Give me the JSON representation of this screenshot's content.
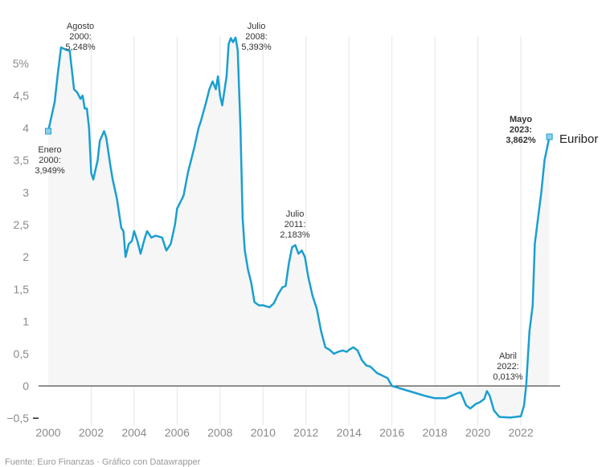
{
  "chart_data": {
    "type": "line",
    "title": "",
    "xlabel": "",
    "ylabel": "",
    "xlim": [
      2000,
      2023.4
    ],
    "ylim": [
      -0.5,
      5.5
    ],
    "grid": "vertical",
    "x_ticks": [
      "2000",
      "2002",
      "2004",
      "2006",
      "2008",
      "2010",
      "2012",
      "2014",
      "2016",
      "2018",
      "2020",
      "2022"
    ],
    "y_ticks": [
      {
        "v": 5,
        "label": "5%"
      },
      {
        "v": 4.5,
        "label": "4,5"
      },
      {
        "v": 4,
        "label": "4"
      },
      {
        "v": 3.5,
        "label": "3,5"
      },
      {
        "v": 3,
        "label": "3"
      },
      {
        "v": 2.5,
        "label": "2,5"
      },
      {
        "v": 2,
        "label": "2"
      },
      {
        "v": 1.5,
        "label": "1,5"
      },
      {
        "v": 1,
        "label": "1"
      },
      {
        "v": 0.5,
        "label": "0,5"
      },
      {
        "v": 0,
        "label": "0"
      },
      {
        "v": -0.5,
        "label": "−0,5"
      }
    ],
    "colors": {
      "line": "#1a9fd0",
      "highlight": "#29a8d8",
      "fill": "#f6f6f6",
      "grid": "#e6e6e6",
      "zero": "#222222"
    },
    "series": [
      {
        "name": "Euribor",
        "points": [
          [
            2000.0,
            3.949
          ],
          [
            2000.3,
            4.4
          ],
          [
            2000.45,
            4.85
          ],
          [
            2000.6,
            5.248
          ],
          [
            2000.9,
            5.2
          ],
          [
            2001.0,
            5.2
          ],
          [
            2001.2,
            4.6
          ],
          [
            2001.35,
            4.55
          ],
          [
            2001.5,
            4.45
          ],
          [
            2001.6,
            4.5
          ],
          [
            2001.7,
            4.3
          ],
          [
            2001.8,
            4.3
          ],
          [
            2001.9,
            4.0
          ],
          [
            2002.0,
            3.3
          ],
          [
            2002.1,
            3.2
          ],
          [
            2002.3,
            3.5
          ],
          [
            2002.4,
            3.8
          ],
          [
            2002.6,
            3.95
          ],
          [
            2002.7,
            3.85
          ],
          [
            2002.9,
            3.4
          ],
          [
            2003.0,
            3.2
          ],
          [
            2003.2,
            2.9
          ],
          [
            2003.4,
            2.45
          ],
          [
            2003.5,
            2.4
          ],
          [
            2003.6,
            2.0
          ],
          [
            2003.75,
            2.2
          ],
          [
            2003.9,
            2.25
          ],
          [
            2004.0,
            2.4
          ],
          [
            2004.15,
            2.25
          ],
          [
            2004.3,
            2.05
          ],
          [
            2004.5,
            2.3
          ],
          [
            2004.6,
            2.4
          ],
          [
            2004.8,
            2.3
          ],
          [
            2005.0,
            2.33
          ],
          [
            2005.3,
            2.3
          ],
          [
            2005.5,
            2.1
          ],
          [
            2005.7,
            2.2
          ],
          [
            2005.9,
            2.5
          ],
          [
            2006.0,
            2.75
          ],
          [
            2006.3,
            2.95
          ],
          [
            2006.5,
            3.3
          ],
          [
            2006.8,
            3.7
          ],
          [
            2007.0,
            4.0
          ],
          [
            2007.1,
            4.1
          ],
          [
            2007.35,
            4.4
          ],
          [
            2007.5,
            4.6
          ],
          [
            2007.65,
            4.72
          ],
          [
            2007.8,
            4.6
          ],
          [
            2007.9,
            4.8
          ],
          [
            2008.0,
            4.5
          ],
          [
            2008.1,
            4.35
          ],
          [
            2008.3,
            4.8
          ],
          [
            2008.4,
            5.3
          ],
          [
            2008.5,
            5.393
          ],
          [
            2008.6,
            5.33
          ],
          [
            2008.72,
            5.4
          ],
          [
            2008.82,
            5.2
          ],
          [
            2008.95,
            4.0
          ],
          [
            2009.05,
            2.6
          ],
          [
            2009.15,
            2.1
          ],
          [
            2009.3,
            1.8
          ],
          [
            2009.45,
            1.6
          ],
          [
            2009.6,
            1.3
          ],
          [
            2009.8,
            1.25
          ],
          [
            2010.0,
            1.25
          ],
          [
            2010.3,
            1.22
          ],
          [
            2010.5,
            1.28
          ],
          [
            2010.7,
            1.42
          ],
          [
            2010.9,
            1.53
          ],
          [
            2011.05,
            1.55
          ],
          [
            2011.2,
            1.9
          ],
          [
            2011.35,
            2.15
          ],
          [
            2011.5,
            2.183
          ],
          [
            2011.65,
            2.05
          ],
          [
            2011.8,
            2.1
          ],
          [
            2011.95,
            2.0
          ],
          [
            2012.1,
            1.7
          ],
          [
            2012.3,
            1.4
          ],
          [
            2012.5,
            1.2
          ],
          [
            2012.7,
            0.85
          ],
          [
            2012.9,
            0.6
          ],
          [
            2013.1,
            0.56
          ],
          [
            2013.3,
            0.5
          ],
          [
            2013.5,
            0.53
          ],
          [
            2013.7,
            0.55
          ],
          [
            2013.9,
            0.53
          ],
          [
            2014.0,
            0.56
          ],
          [
            2014.2,
            0.6
          ],
          [
            2014.4,
            0.55
          ],
          [
            2014.6,
            0.4
          ],
          [
            2014.8,
            0.32
          ],
          [
            2015.0,
            0.3
          ],
          [
            2015.3,
            0.2
          ],
          [
            2015.5,
            0.17
          ],
          [
            2015.8,
            0.12
          ],
          [
            2016.0,
            0.0
          ],
          [
            2016.2,
            -0.02
          ],
          [
            2016.5,
            -0.05
          ],
          [
            2017.0,
            -0.1
          ],
          [
            2017.5,
            -0.15
          ],
          [
            2018.0,
            -0.19
          ],
          [
            2018.5,
            -0.19
          ],
          [
            2019.0,
            -0.12
          ],
          [
            2019.2,
            -0.1
          ],
          [
            2019.45,
            -0.3
          ],
          [
            2019.65,
            -0.35
          ],
          [
            2019.9,
            -0.28
          ],
          [
            2020.1,
            -0.25
          ],
          [
            2020.3,
            -0.2
          ],
          [
            2020.42,
            -0.08
          ],
          [
            2020.55,
            -0.15
          ],
          [
            2020.75,
            -0.38
          ],
          [
            2021.0,
            -0.48
          ],
          [
            2021.5,
            -0.49
          ],
          [
            2022.0,
            -0.47
          ],
          [
            2022.15,
            -0.3
          ],
          [
            2022.25,
            0.013
          ],
          [
            2022.4,
            0.85
          ],
          [
            2022.55,
            1.25
          ],
          [
            2022.65,
            2.2
          ],
          [
            2022.8,
            2.6
          ],
          [
            2022.95,
            3.0
          ],
          [
            2023.1,
            3.5
          ],
          [
            2023.33,
            3.862
          ]
        ]
      }
    ],
    "annotations": [
      {
        "x": 2000.0,
        "y": 3.949,
        "lines": [
          "Enero",
          "2000:",
          "3,949%"
        ]
      },
      {
        "x": 2000.6,
        "y": 5.248,
        "lines": [
          "Agosto",
          "2000:",
          "5,248%"
        ]
      },
      {
        "x": 2008.5,
        "y": 5.393,
        "lines": [
          "Julio",
          "2008:",
          "5,393%"
        ]
      },
      {
        "x": 2011.5,
        "y": 2.183,
        "lines": [
          "Julio",
          "2011:",
          "2,183%"
        ]
      },
      {
        "x": 2022.25,
        "y": 0.013,
        "lines": [
          "Abril",
          "2022:",
          "0,013%"
        ]
      },
      {
        "x": 2023.33,
        "y": 3.862,
        "lines": [
          "Mayo",
          "2023:",
          "3,862%"
        ],
        "highlight": true
      }
    ],
    "series_label": "Euribor"
  },
  "footer": "Fuente: Euro Finanzas · Gráfico con Datawrapper"
}
